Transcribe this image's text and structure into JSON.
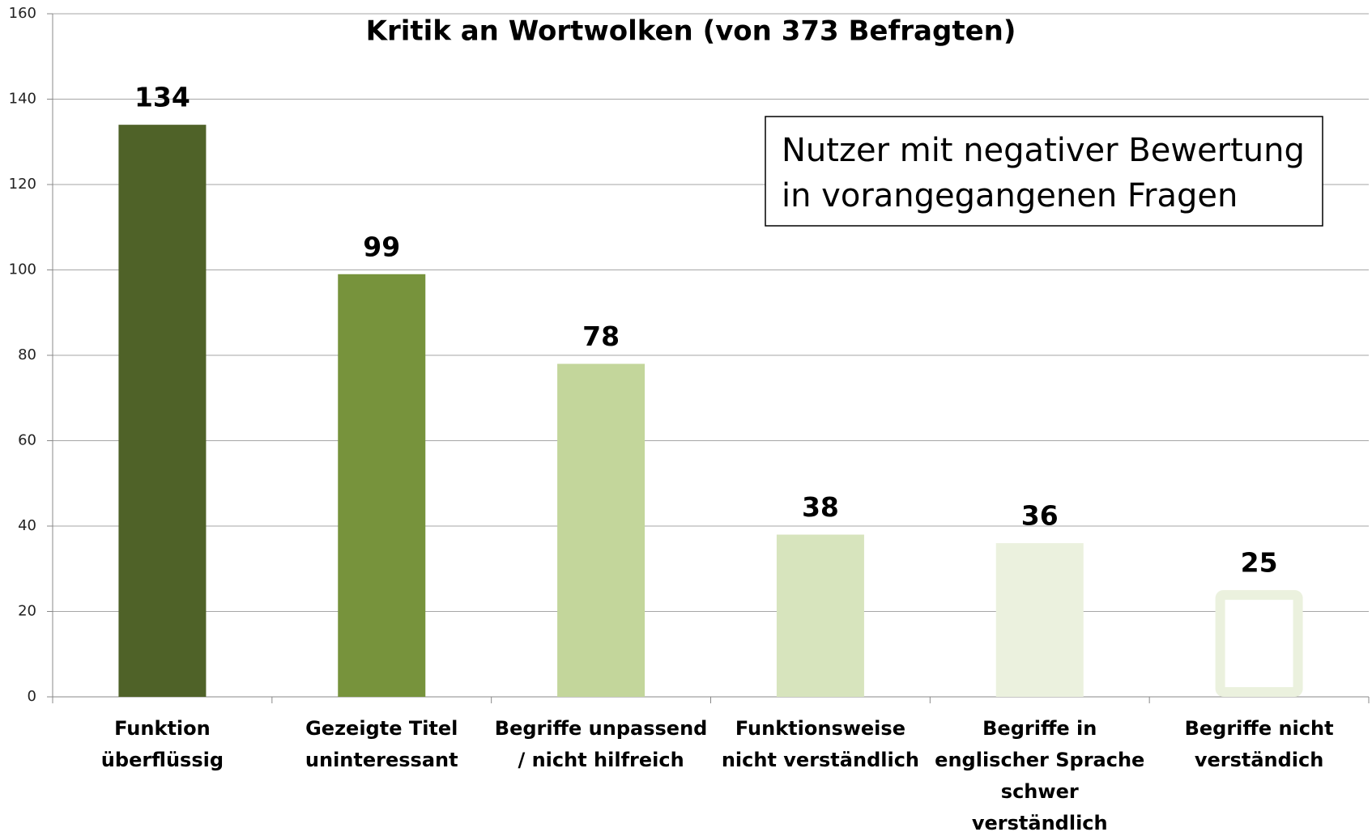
{
  "chart_data": {
    "type": "bar",
    "title": "Kritik an Wortwolken (von 373 Befragten)",
    "annotation": "Nutzer mit negativer Bewertung\nin vorangegangenen Fragen",
    "categories": [
      "Funktion\nüberflüssig",
      "Gezeigte Titel\nuninteressant",
      "Begriffe unpassend\n/ nicht hilfreich",
      "Funktionsweise\nnicht verständlich",
      "Begriffe in\nenglischer Sprache\nschwer\nverständlich",
      "Begriffe nicht\nverständich"
    ],
    "values": [
      134,
      99,
      78,
      38,
      36,
      25
    ],
    "colors": [
      "#4f6228",
      "#77933c",
      "#c3d69b",
      "#d7e4bd",
      "#ebf1de",
      "#ffffff"
    ],
    "outline_colors": [
      null,
      null,
      null,
      null,
      null,
      "#ebf1de"
    ],
    "ylim": [
      0,
      160
    ],
    "yticks": [
      0,
      20,
      40,
      60,
      80,
      100,
      120,
      140,
      160
    ],
    "grid": true
  }
}
